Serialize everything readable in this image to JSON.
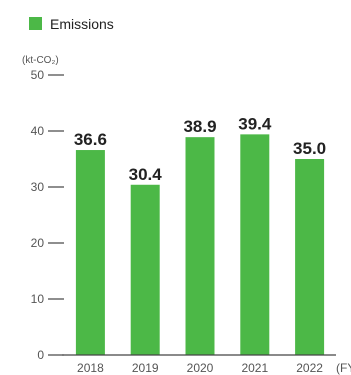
{
  "chart_data": {
    "type": "bar",
    "categories": [
      "2018",
      "2019",
      "2020",
      "2021",
      "2022"
    ],
    "series": [
      {
        "name": "Emissions",
        "values": [
          36.6,
          30.4,
          38.9,
          39.4,
          35.0
        ]
      }
    ],
    "value_labels": [
      "36.6",
      "30.4",
      "38.9",
      "39.4",
      "35.0"
    ],
    "title": "",
    "xlabel": "",
    "x_unit": "(FY",
    "ylabel": "",
    "y_unit": "(kt-CO₂)",
    "yticks": [
      0,
      10,
      20,
      30,
      40,
      50
    ],
    "ylim": [
      0,
      50
    ],
    "grid": false,
    "legend": "top-left",
    "colors": {
      "bar": "#4cb847",
      "axis": "#444444",
      "text": "#222222",
      "muted": "#555555"
    }
  }
}
